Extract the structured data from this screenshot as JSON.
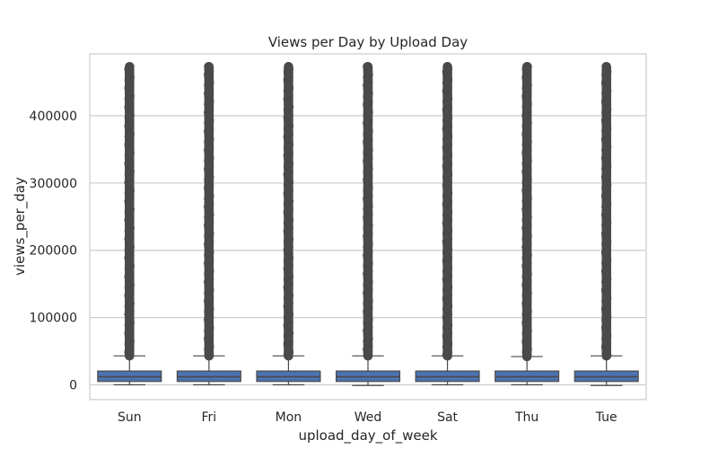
{
  "chart_data": {
    "type": "box",
    "title": "Views per Day by Upload Day",
    "xlabel": "upload_day_of_week",
    "ylabel": "views_per_day",
    "categories": [
      "Sun",
      "Fri",
      "Mon",
      "Wed",
      "Sat",
      "Thu",
      "Tue"
    ],
    "ylim": [
      -22000,
      492000
    ],
    "yticks": [
      0,
      100000,
      200000,
      300000,
      400000
    ],
    "ytick_labels": [
      "0",
      "100000",
      "200000",
      "300000",
      "400000"
    ],
    "grid": "horizontal",
    "box_color": "#4c72b0",
    "outlier_color": "#4a4a4a",
    "boxes": [
      {
        "category": "Sun",
        "whisker_low": 0,
        "q1": 5000,
        "median": 12000,
        "q3": 20500,
        "whisker_high": 43000,
        "outlier_range": [
          43000,
          473000
        ]
      },
      {
        "category": "Fri",
        "whisker_low": 0,
        "q1": 5000,
        "median": 12000,
        "q3": 20500,
        "whisker_high": 43000,
        "outlier_range": [
          43000,
          473000
        ]
      },
      {
        "category": "Mon",
        "whisker_low": 0,
        "q1": 5000,
        "median": 12000,
        "q3": 20500,
        "whisker_high": 43000,
        "outlier_range": [
          43000,
          473000
        ]
      },
      {
        "category": "Wed",
        "whisker_low": -1000,
        "q1": 5000,
        "median": 12000,
        "q3": 20500,
        "whisker_high": 43000,
        "outlier_range": [
          43000,
          473000
        ]
      },
      {
        "category": "Sat",
        "whisker_low": 0,
        "q1": 5000,
        "median": 12000,
        "q3": 20500,
        "whisker_high": 43000,
        "outlier_range": [
          43000,
          473000
        ]
      },
      {
        "category": "Thu",
        "whisker_low": 0,
        "q1": 5000,
        "median": 12000,
        "q3": 20500,
        "whisker_high": 42000,
        "outlier_range": [
          42000,
          473000
        ]
      },
      {
        "category": "Tue",
        "whisker_low": -1000,
        "q1": 5000,
        "median": 12000,
        "q3": 20500,
        "whisker_high": 43000,
        "outlier_range": [
          43000,
          473000
        ]
      }
    ]
  }
}
